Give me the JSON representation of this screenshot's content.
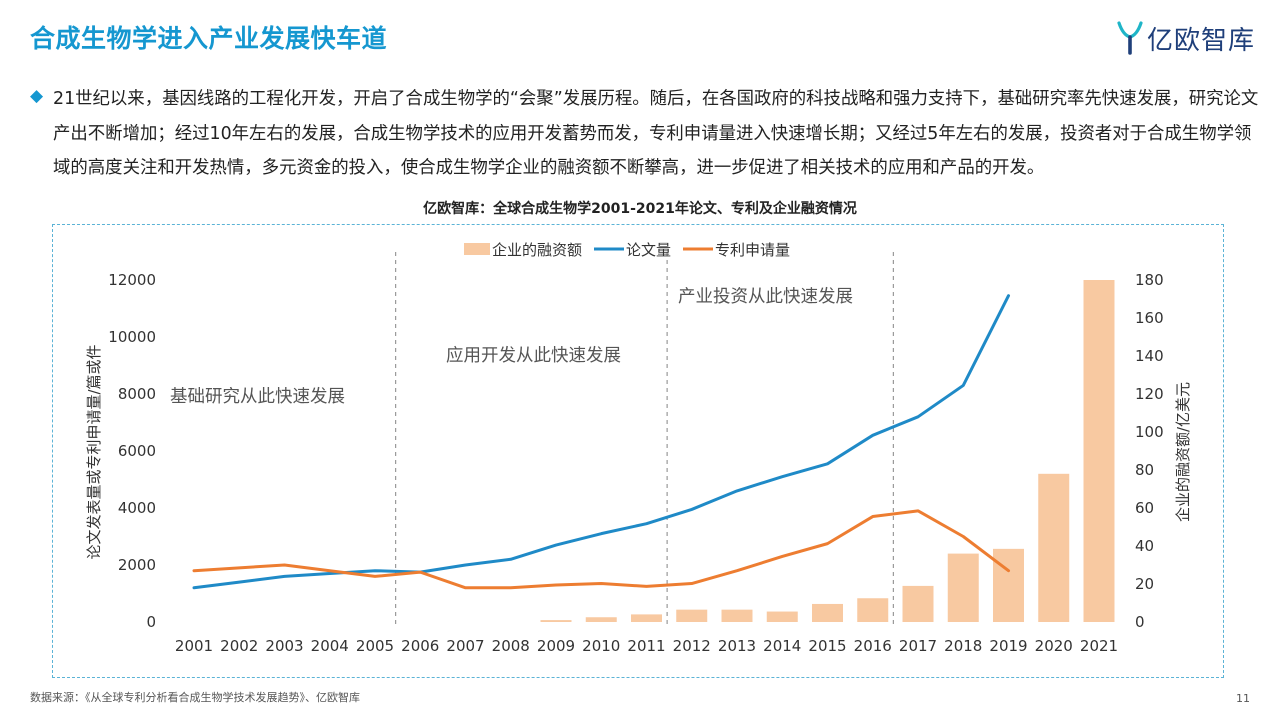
{
  "header": {
    "title": "合成生物学进入产业发展快车道"
  },
  "brand": {
    "name": "亿欧智库"
  },
  "intro": {
    "text": "21世纪以来，基因线路的工程化开发，开启了合成生物学的“会聚”发展历程。随后，在各国政府的科技战略和强力支持下，基础研究率先快速发展，研究论文产出不断增加；经过10年左右的发展，合成生物学技术的应用开发蓄势而发，专利申请量进入快速增长期；又经过5年左右的发展，投资者对于合成生物学领域的高度关注和开发热情，多元资金的投入，使合成生物学企业的融资额不断攀高，进一步促进了相关技术的应用和产品的开发。"
  },
  "footer": {
    "source": "数据来源：《从全球专利分析看合成生物学技术发展趋势》、亿欧智库",
    "page": "11"
  },
  "colors": {
    "accent": "#1597d0",
    "papers": "#1f8ac7",
    "patents": "#ed7d31",
    "funding": "#f8c9a1"
  },
  "chart_data": {
    "type": "bar-line",
    "title": "亿欧智库：全球合成生物学2001-2021年论文、专利及企业融资情况",
    "categories": [
      "2001",
      "2002",
      "2003",
      "2004",
      "2005",
      "2006",
      "2007",
      "2008",
      "2009",
      "2010",
      "2011",
      "2012",
      "2013",
      "2014",
      "2015",
      "2016",
      "2017",
      "2018",
      "2019",
      "2020",
      "2021"
    ],
    "ylabel_left": "论文发表量或专利申请量/篇或件",
    "ylabel_right": "企业的融资额/亿美元",
    "ylim_left": [
      0,
      12000
    ],
    "yticks_left": [
      "0",
      "2000",
      "4000",
      "6000",
      "8000",
      "10000",
      "12000"
    ],
    "ylim_right": [
      0,
      180
    ],
    "yticks_right": [
      "0",
      "20",
      "40",
      "60",
      "80",
      "100",
      "120",
      "140",
      "160",
      "180"
    ],
    "legend_position": "top-center",
    "series": [
      {
        "name": "企业的融资额",
        "type": "bar",
        "axis": "right",
        "values": [
          0,
          0,
          0,
          0,
          0,
          0,
          0,
          0,
          1,
          2.5,
          4,
          6.5,
          6.5,
          5.5,
          9.5,
          12.5,
          19,
          36,
          38.5,
          78,
          180
        ]
      },
      {
        "name": "论文量",
        "type": "line",
        "axis": "left",
        "values": [
          1200,
          1400,
          1600,
          1700,
          1800,
          1750,
          2000,
          2200,
          2700,
          3100,
          3450,
          3950,
          4600,
          5100,
          5550,
          6550,
          7200,
          8300,
          11450,
          null,
          null
        ]
      },
      {
        "name": "专利申请量",
        "type": "line",
        "axis": "left",
        "values": [
          1800,
          1900,
          2000,
          1800,
          1600,
          1750,
          1200,
          1200,
          1300,
          1350,
          1250,
          1350,
          1800,
          2300,
          2750,
          3700,
          3900,
          3000,
          1800,
          null,
          null
        ]
      }
    ],
    "annotations": [
      {
        "text": "基础研究从此快速发展",
        "after": "2005"
      },
      {
        "text": "应用开发从此快速发展",
        "after": "2011"
      },
      {
        "text": "产业投资从此快速发展",
        "after": "2016"
      }
    ],
    "dividers": [
      "2005",
      "2011",
      "2016"
    ]
  }
}
